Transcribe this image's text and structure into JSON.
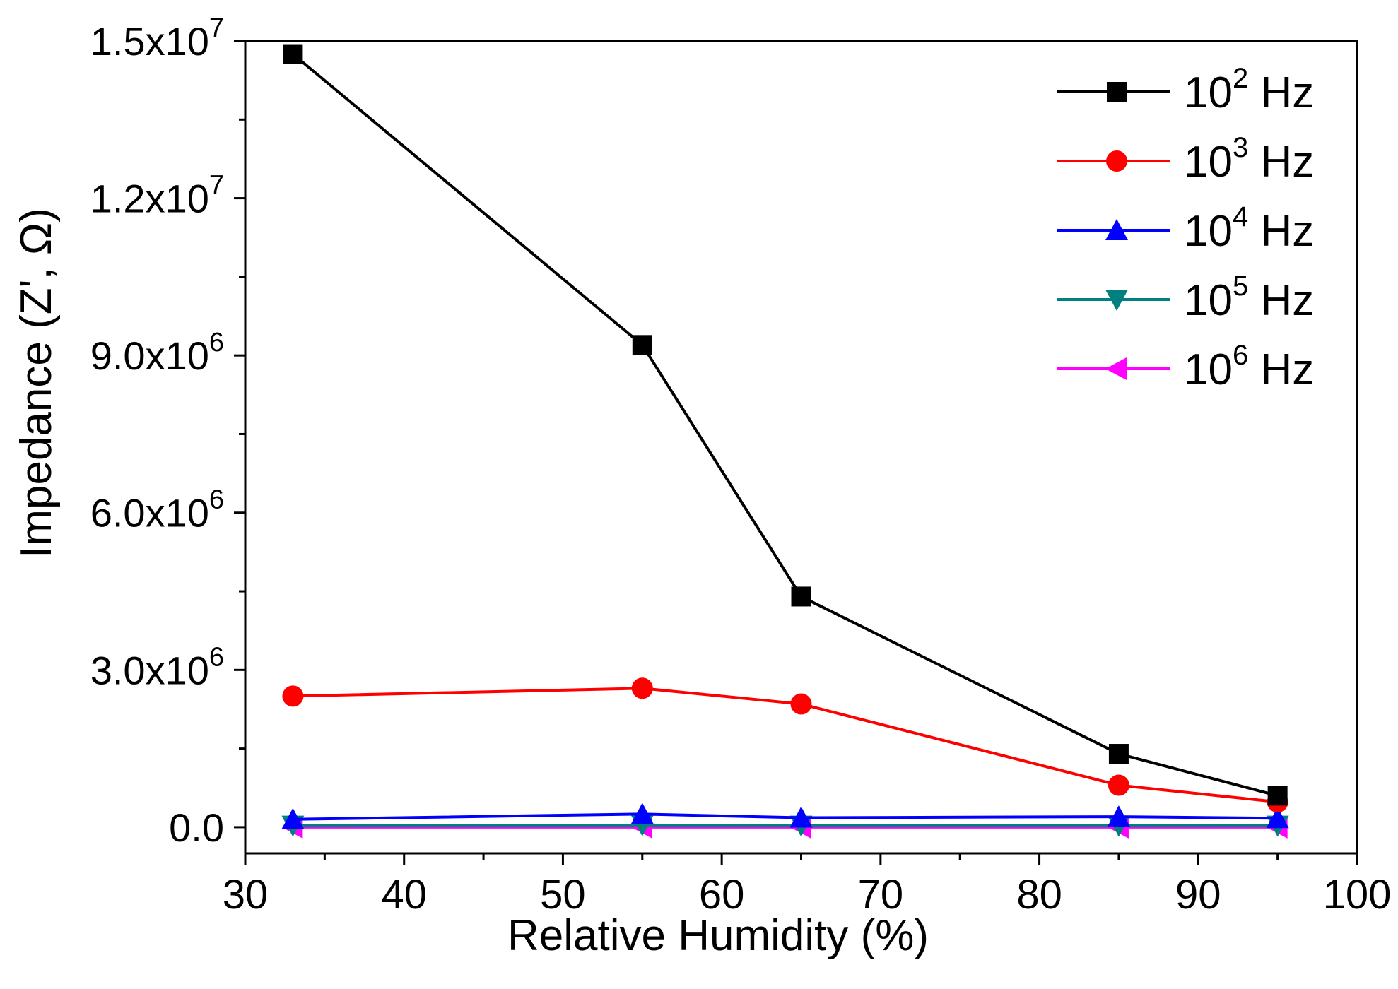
{
  "chart_data": {
    "type": "line",
    "title": "",
    "xlabel": "Relative Humidity (%)",
    "ylabel": "Impedance (Z', Ω)",
    "xlim": [
      30,
      100
    ],
    "ylim": [
      -500000,
      15000000
    ],
    "x_ticks": [
      "30",
      "40",
      "50",
      "60",
      "70",
      "80",
      "90",
      "100"
    ],
    "y_ticks": [
      {
        "value": 0,
        "mantissa": "0.0",
        "exponent": ""
      },
      {
        "value": 3000000,
        "mantissa": "3.0x10",
        "exponent": "6"
      },
      {
        "value": 6000000,
        "mantissa": "6.0x10",
        "exponent": "6"
      },
      {
        "value": 9000000,
        "mantissa": "9.0x10",
        "exponent": "6"
      },
      {
        "value": 12000000,
        "mantissa": "1.2x10",
        "exponent": "7"
      },
      {
        "value": 15000000,
        "mantissa": "1.5x10",
        "exponent": "7"
      }
    ],
    "x": [
      33,
      55,
      65,
      85,
      95
    ],
    "legend_position": "top-right",
    "series": [
      {
        "name": "10^2 Hz",
        "base": "10",
        "exponent": "2",
        "unit": " Hz",
        "color": "#000000",
        "marker": "square",
        "values": [
          14750000,
          9200000,
          4400000,
          1400000,
          600000
        ]
      },
      {
        "name": "10^3 Hz",
        "base": "10",
        "exponent": "3",
        "unit": " Hz",
        "color": "#ff0000",
        "marker": "circle",
        "values": [
          2500000,
          2650000,
          2350000,
          800000,
          480000
        ]
      },
      {
        "name": "10^4 Hz",
        "base": "10",
        "exponent": "4",
        "unit": " Hz",
        "color": "#0000ff",
        "marker": "triangle-up",
        "values": [
          150000,
          250000,
          180000,
          200000,
          170000
        ]
      },
      {
        "name": "10^5 Hz",
        "base": "10",
        "exponent": "5",
        "unit": " Hz",
        "color": "#008080",
        "marker": "triangle-down",
        "values": [
          30000,
          40000,
          30000,
          30000,
          30000
        ]
      },
      {
        "name": "10^6 Hz",
        "base": "10",
        "exponent": "6",
        "unit": " Hz",
        "color": "#ff00ff",
        "marker": "triangle-left",
        "values": [
          0,
          0,
          0,
          0,
          0
        ]
      }
    ]
  }
}
